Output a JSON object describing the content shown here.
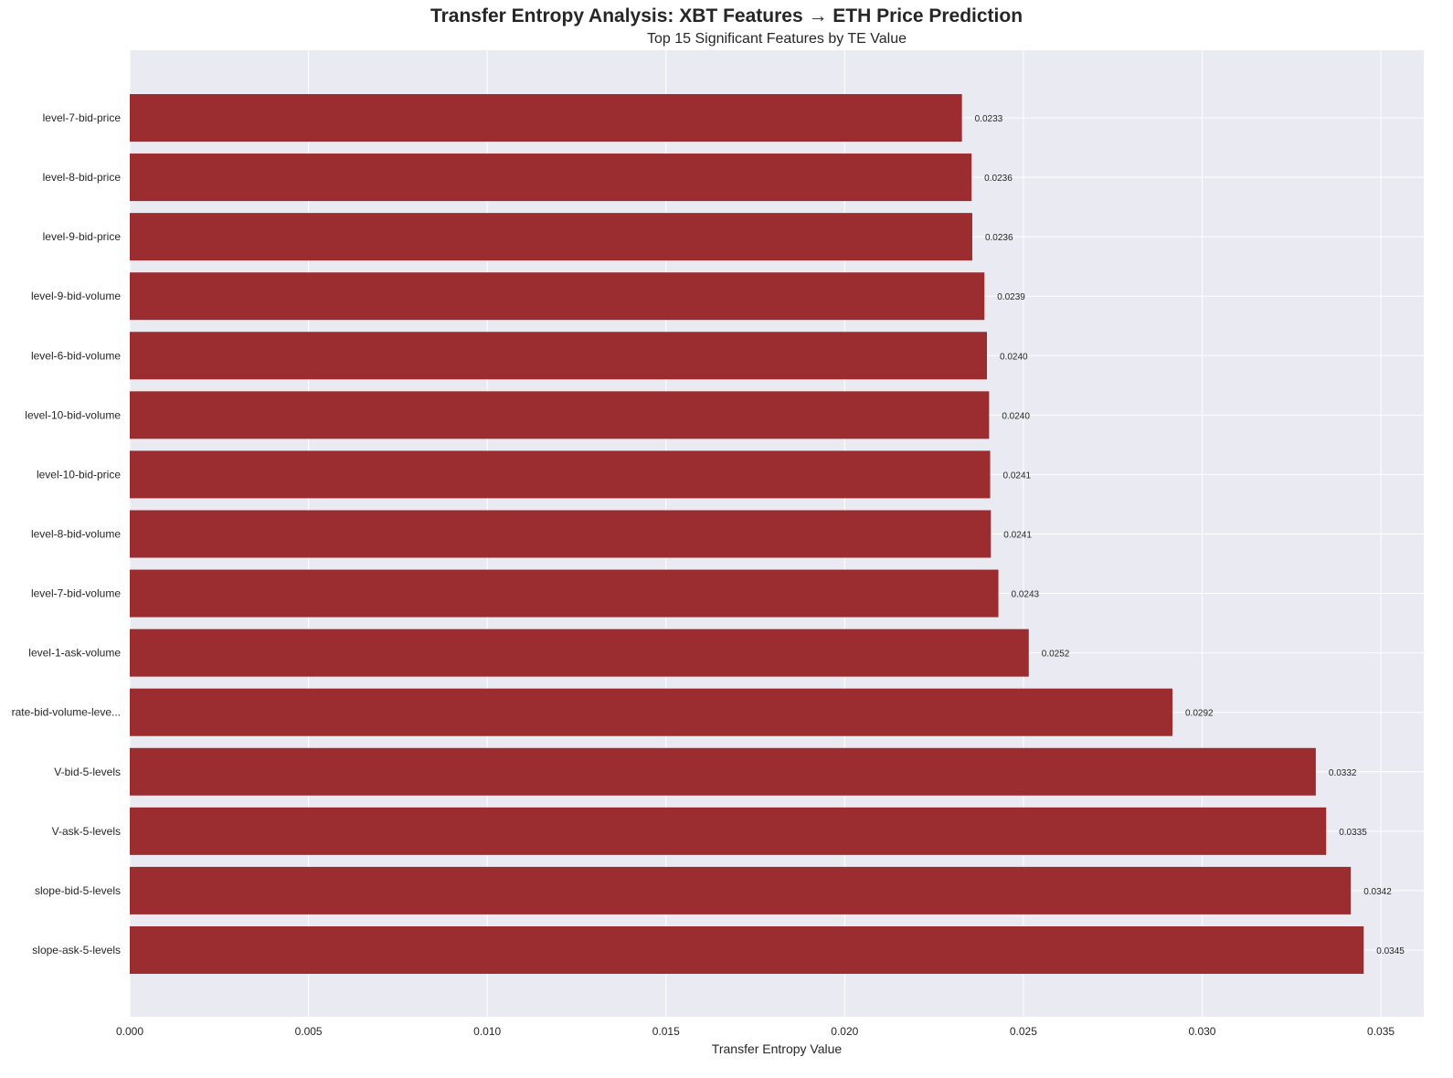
{
  "chart_data": {
    "type": "bar",
    "orientation": "horizontal",
    "title": "Transfer Entropy Analysis: XBT Features → ETH Price Prediction",
    "subtitle": "Top 15 Significant Features by TE Value",
    "xlabel": "Transfer Entropy Value",
    "ylabel": "",
    "xlim": [
      0,
      0.0362
    ],
    "xticks": [
      0.0,
      0.005,
      0.01,
      0.015,
      0.02,
      0.025,
      0.03,
      0.035
    ],
    "xtick_labels": [
      "0.000",
      "0.005",
      "0.010",
      "0.015",
      "0.020",
      "0.025",
      "0.030",
      "0.035"
    ],
    "grid": true,
    "legend": "none",
    "colors": {
      "bar": "#9b2c2f",
      "plot_bg": "#eaeaf2",
      "grid": "#ffffff"
    },
    "categories": [
      "level-7-bid-price",
      "level-8-bid-price",
      "level-9-bid-price",
      "level-9-bid-volume",
      "level-6-bid-volume",
      "level-10-bid-volume",
      "level-10-bid-price",
      "level-8-bid-volume",
      "level-7-bid-volume",
      "level-1-ask-volume",
      "rate-bid-volume-leve...",
      "V-bid-5-levels",
      "V-ask-5-levels",
      "slope-bid-5-levels",
      "slope-ask-5-levels"
    ],
    "values": [
      0.02328,
      0.02355,
      0.02357,
      0.02391,
      0.02398,
      0.02404,
      0.02407,
      0.02409,
      0.0243,
      0.02515,
      0.02917,
      0.03318,
      0.03347,
      0.03416,
      0.03452
    ],
    "value_labels": [
      "0.0233",
      "0.0236",
      "0.0236",
      "0.0239",
      "0.0240",
      "0.0240",
      "0.0241",
      "0.0241",
      "0.0243",
      "0.0252",
      "0.0292",
      "0.0332",
      "0.0335",
      "0.0342",
      "0.0345"
    ]
  }
}
